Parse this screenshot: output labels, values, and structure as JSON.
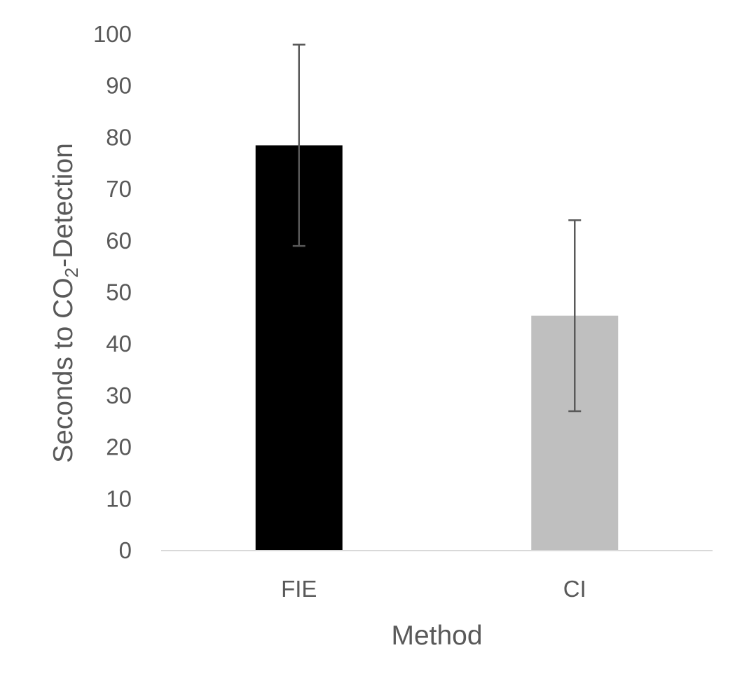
{
  "chart_data": {
    "type": "bar",
    "title": "",
    "xlabel": "Method",
    "ylabel": {
      "main": "Seconds to CO",
      "subscript": "2",
      "suffix": "-Detection"
    },
    "categories": [
      "FIE",
      "CI"
    ],
    "values": [
      78.5,
      45.5
    ],
    "error_bars": [
      {
        "low": 59.0,
        "high": 98.0
      },
      {
        "low": 27.0,
        "high": 64.0
      }
    ],
    "bar_colors": [
      "#000000",
      "#bfbfbf"
    ],
    "ylim": [
      0,
      100
    ],
    "yticks": [
      "0",
      "10",
      "20",
      "30",
      "40",
      "50",
      "60",
      "70",
      "80",
      "90",
      "100"
    ],
    "grid": false,
    "legend": "none"
  }
}
